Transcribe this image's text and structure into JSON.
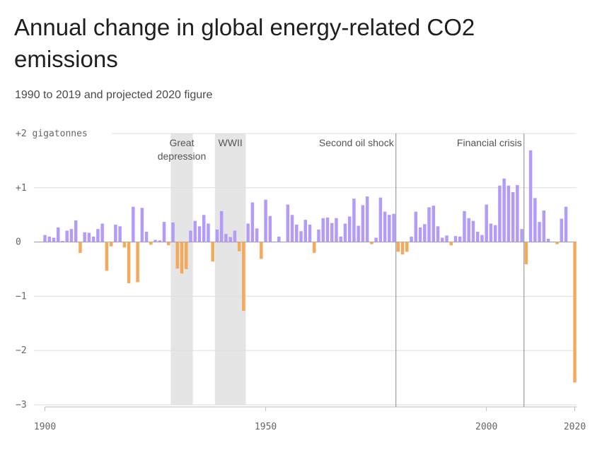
{
  "header": {
    "title": "Annual change in global energy-related CO2 emissions",
    "subtitle": "1990 to 2019 and projected 2020 figure"
  },
  "colors": {
    "positive": "#b39cf7",
    "negative": "#f5a95a",
    "band": "#e5e5e5",
    "grid": "#dedede",
    "event_line": "#8a8a8a",
    "axis_text": "#666666"
  },
  "chart_data": {
    "type": "bar",
    "title": "Annual change in global energy-related CO2 emissions",
    "subtitle": "1990 to 2019 and projected 2020 figure",
    "ylabel": "gigatonnes",
    "xlim": [
      1900,
      2020
    ],
    "ylim": [
      -3,
      2
    ],
    "y_ticks": [
      2,
      1,
      0,
      -1,
      -2,
      -3
    ],
    "y_tick_labels": [
      "+2 gigatonnes",
      "+1",
      "0",
      "−1",
      "−2",
      "−3"
    ],
    "x_ticks": [
      1900,
      1950,
      2000,
      2020
    ],
    "x_tick_labels": [
      "1900",
      "1950",
      "2000",
      "2020"
    ],
    "grid": true,
    "legend": "none",
    "positive_color": "#b39cf7",
    "negative_color": "#f5a95a",
    "shaded_periods": [
      {
        "label_lines": [
          "Great",
          "depression"
        ],
        "start": 1929,
        "end": 1933
      },
      {
        "label_lines": [
          "WWII"
        ],
        "start": 1939,
        "end": 1945
      }
    ],
    "event_lines": [
      {
        "label": "Second oil shock",
        "year": 1980
      },
      {
        "label": "Financial crisis",
        "year": 2009
      }
    ],
    "years": [
      1900,
      1901,
      1902,
      1903,
      1904,
      1905,
      1906,
      1907,
      1908,
      1909,
      1910,
      1911,
      1912,
      1913,
      1914,
      1915,
      1916,
      1917,
      1918,
      1919,
      1920,
      1921,
      1922,
      1923,
      1924,
      1925,
      1926,
      1927,
      1928,
      1929,
      1930,
      1931,
      1932,
      1933,
      1934,
      1935,
      1936,
      1937,
      1938,
      1939,
      1940,
      1941,
      1942,
      1943,
      1944,
      1945,
      1946,
      1947,
      1948,
      1949,
      1950,
      1951,
      1952,
      1953,
      1954,
      1955,
      1956,
      1957,
      1958,
      1959,
      1960,
      1961,
      1962,
      1963,
      1964,
      1965,
      1966,
      1967,
      1968,
      1969,
      1970,
      1971,
      1972,
      1973,
      1974,
      1975,
      1976,
      1977,
      1978,
      1979,
      1980,
      1981,
      1982,
      1983,
      1984,
      1985,
      1986,
      1987,
      1988,
      1989,
      1990,
      1991,
      1992,
      1993,
      1994,
      1995,
      1996,
      1997,
      1998,
      1999,
      2000,
      2001,
      2002,
      2003,
      2004,
      2005,
      2006,
      2007,
      2008,
      2009,
      2010,
      2011,
      2012,
      2013,
      2014,
      2015,
      2016,
      2017,
      2018,
      2019,
      2020
    ],
    "values": [
      0.13,
      0.1,
      0.08,
      0.27,
      0.02,
      0.21,
      0.24,
      0.4,
      -0.2,
      0.18,
      0.17,
      0.1,
      0.24,
      0.34,
      -0.53,
      -0.08,
      0.32,
      0.29,
      -0.1,
      -0.76,
      0.65,
      -0.74,
      0.63,
      0.19,
      -0.05,
      0.04,
      0.03,
      0.37,
      -0.06,
      0.36,
      -0.49,
      -0.58,
      -0.5,
      0.21,
      0.39,
      0.29,
      0.5,
      0.34,
      -0.36,
      0.23,
      0.57,
      0.15,
      0.09,
      0.21,
      -0.17,
      -1.27,
      0.34,
      0.73,
      0.25,
      -0.31,
      0.78,
      0.48,
      0.01,
      0.1,
      0.0,
      0.69,
      0.5,
      0.32,
      0.2,
      0.41,
      0.32,
      -0.2,
      0.23,
      0.44,
      0.45,
      0.35,
      0.44,
      0.1,
      0.34,
      0.47,
      0.8,
      0.3,
      0.68,
      0.84,
      -0.04,
      0.08,
      0.82,
      0.56,
      0.5,
      0.52,
      -0.18,
      -0.23,
      -0.18,
      0.1,
      0.56,
      0.27,
      0.33,
      0.64,
      0.67,
      0.29,
      0.08,
      0.12,
      -0.06,
      0.11,
      0.1,
      0.57,
      0.44,
      0.39,
      0.19,
      0.13,
      0.69,
      0.34,
      0.31,
      1.04,
      1.17,
      1.04,
      0.92,
      1.05,
      0.24,
      -0.41,
      1.69,
      0.81,
      0.37,
      0.58,
      0.06,
      0.0,
      -0.04,
      0.43,
      0.65,
      0.0,
      -2.59
    ]
  }
}
